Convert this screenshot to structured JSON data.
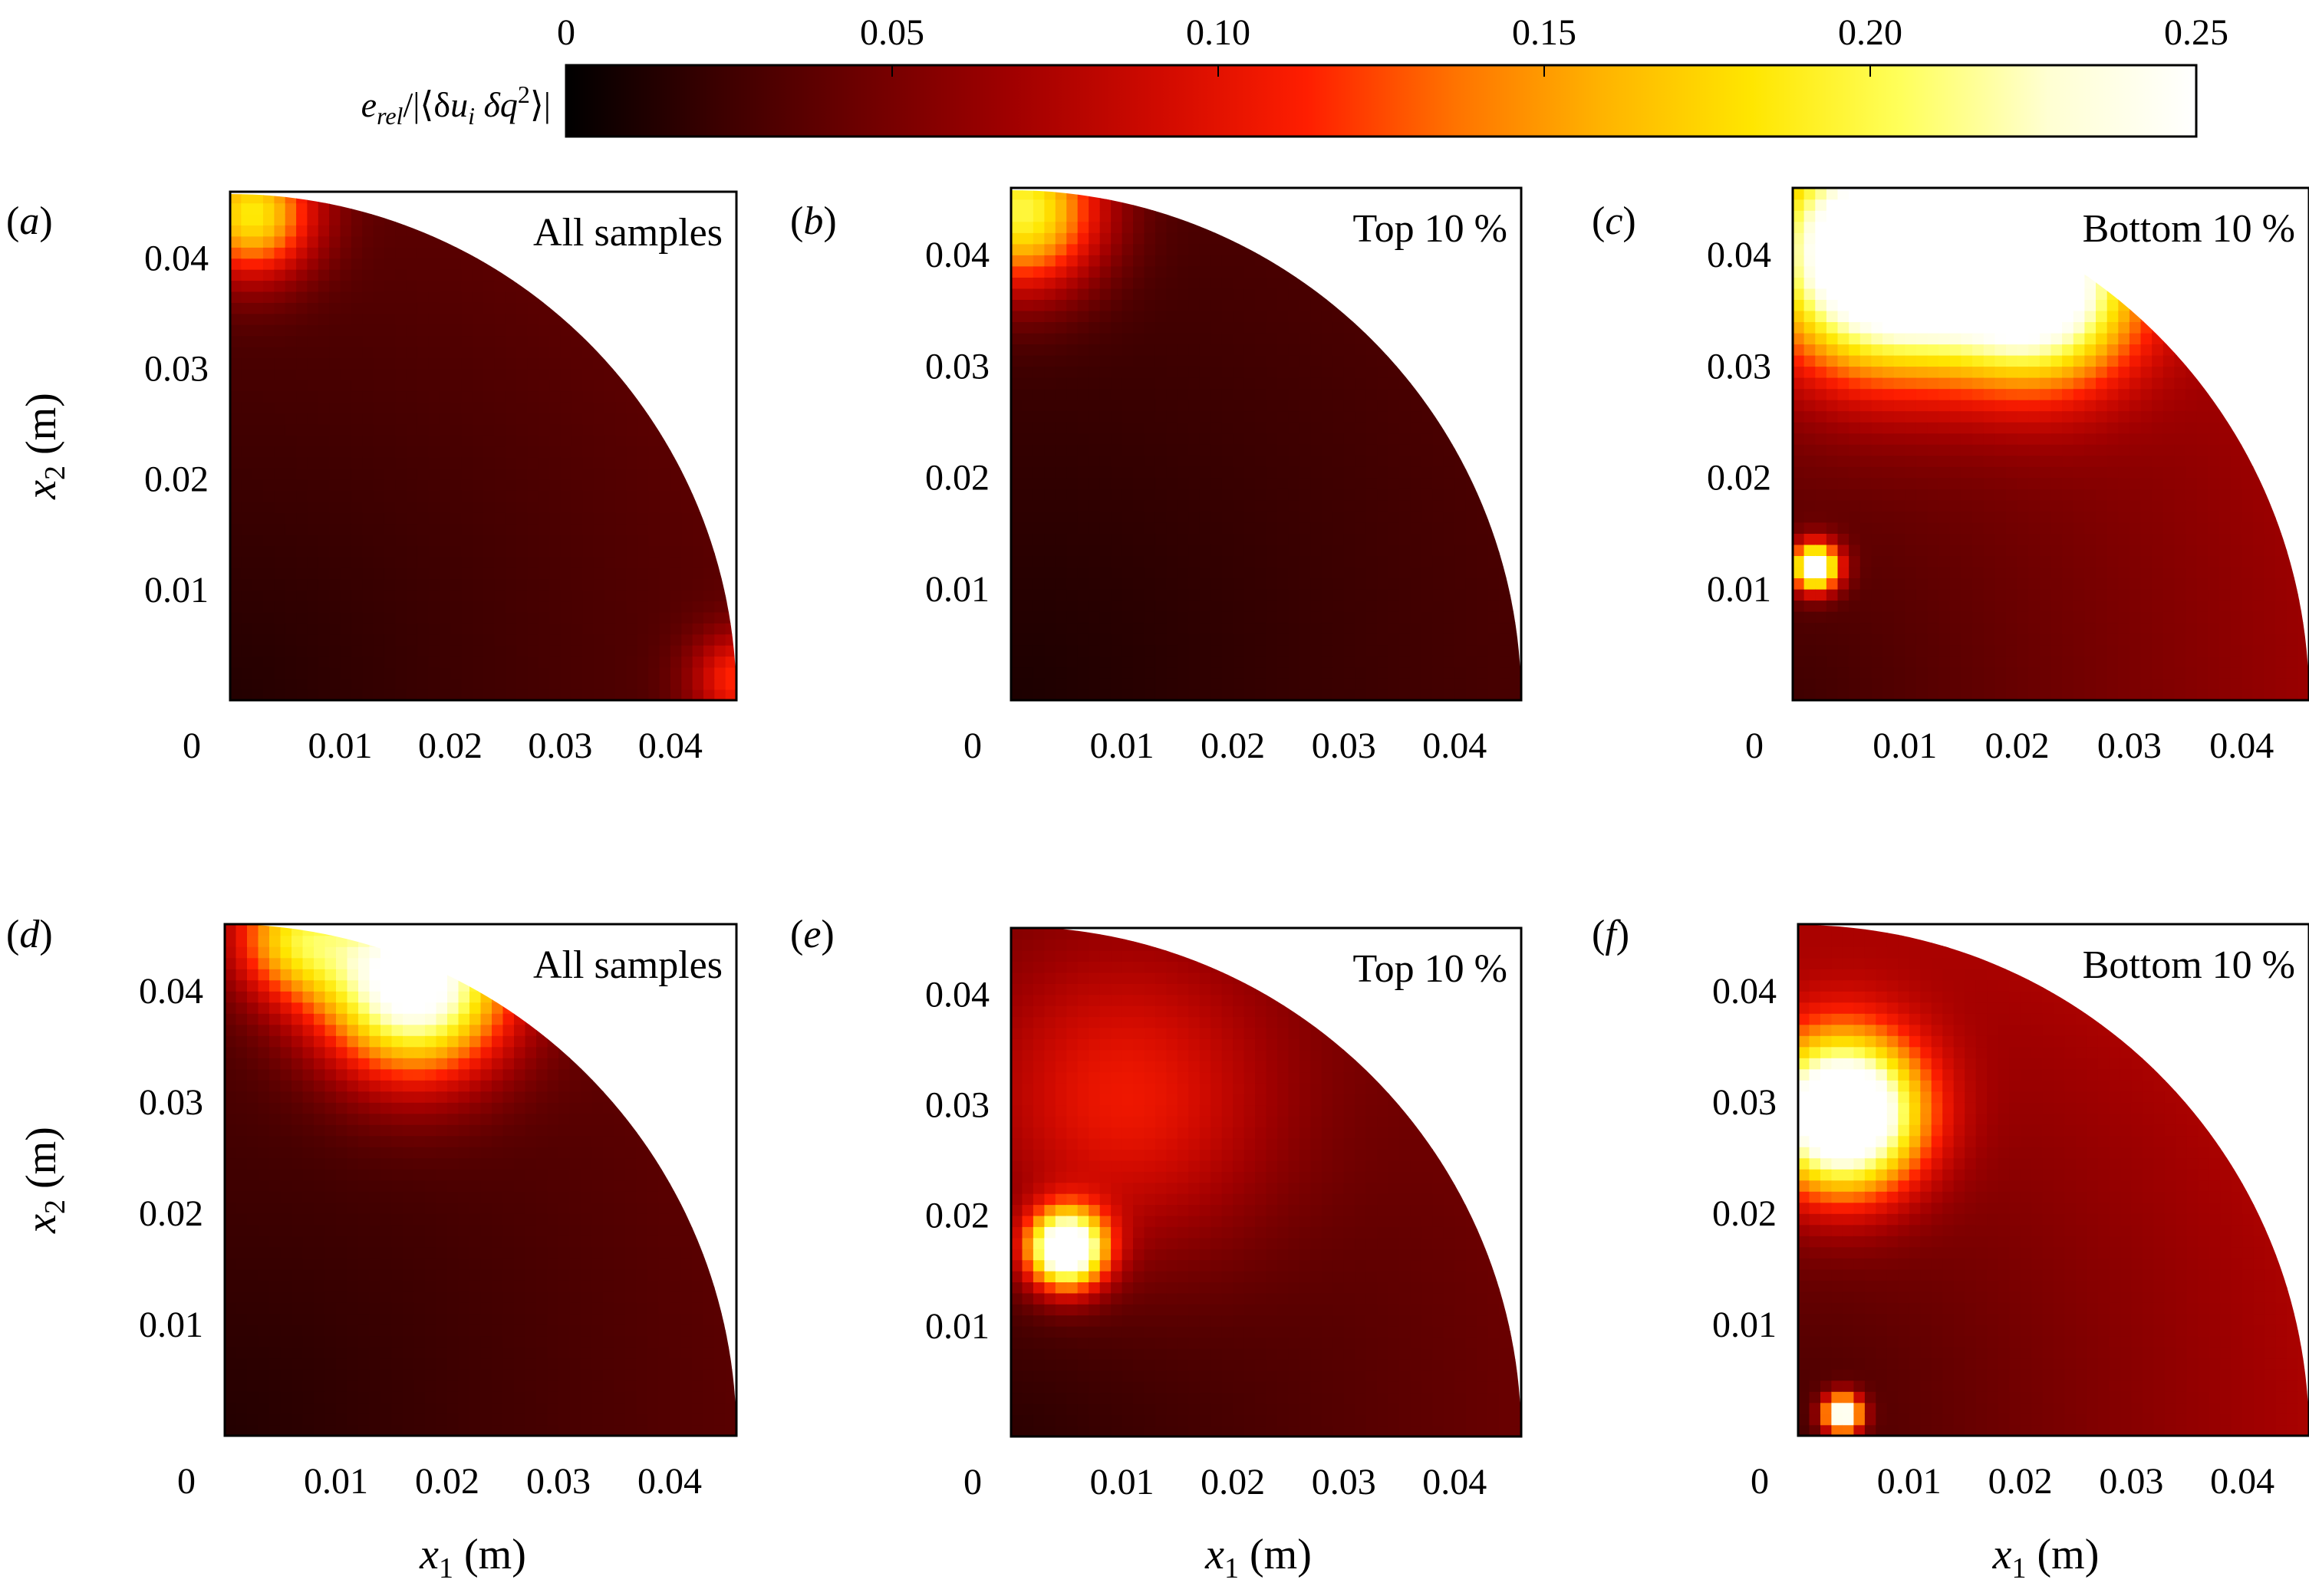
{
  "colorbar": {
    "label": "e_rel / |⟨δu_i δq^2⟩|",
    "label_parts": {
      "main": "e",
      "sub": "rel",
      "slash": "/|⟨δ",
      "u": "u",
      "i": "i",
      "dq": " δq",
      "sup": "2",
      "close": "⟩|"
    },
    "ticks": [
      "0",
      "0.05",
      "0.10",
      "0.15",
      "0.20",
      "0.25"
    ],
    "range": [
      0,
      0.25
    ],
    "colors": [
      "#000000",
      "#3a0000",
      "#6e0000",
      "#a00000",
      "#d00a00",
      "#ff1e00",
      "#ff7300",
      "#ffb400",
      "#ffe600",
      "#ffff5a",
      "#ffffd2",
      "#ffffff"
    ]
  },
  "chart_data": [
    {
      "panel": "(a)",
      "label_letter": "a",
      "annotation": "All samples",
      "type": "heatmap",
      "xlabel": "",
      "ylabel": "x2 (m)",
      "xlim": [
        0,
        0.046
      ],
      "ylim": [
        0,
        0.046
      ],
      "xticks": [
        "0",
        "0.01",
        "0.02",
        "0.03",
        "0.04"
      ],
      "yticks": [
        "0.01",
        "0.02",
        "0.03",
        "0.04"
      ],
      "hotspots": [
        {
          "x": 0.002,
          "y": 0.044,
          "value": 0.15,
          "spread": 0.004
        },
        {
          "x": 0.046,
          "y": 0.002,
          "value": 0.08,
          "spread": 0.003
        }
      ],
      "base_value": 0.025
    },
    {
      "panel": "(b)",
      "label_letter": "b",
      "annotation": "Top 10 %",
      "type": "heatmap",
      "xlabel": "",
      "ylabel": "",
      "xlim": [
        0,
        0.046
      ],
      "ylim": [
        0,
        0.046
      ],
      "xticks": [
        "0",
        "0.01",
        "0.02",
        "0.03",
        "0.04"
      ],
      "yticks": [
        "0.01",
        "0.02",
        "0.03",
        "0.04"
      ],
      "hotspots": [
        {
          "x": 0.001,
          "y": 0.044,
          "value": 0.17,
          "spread": 0.005
        }
      ],
      "base_value": 0.02
    },
    {
      "panel": "(c)",
      "label_letter": "c",
      "annotation": "Bottom 10 %",
      "type": "heatmap",
      "xlabel": "",
      "ylabel": "",
      "xlim": [
        0,
        0.046
      ],
      "ylim": [
        0,
        0.046
      ],
      "xticks": [
        "0",
        "0.01",
        "0.02",
        "0.03",
        "0.04"
      ],
      "yticks": [
        "0.01",
        "0.02",
        "0.03",
        "0.04"
      ],
      "hotspots": [
        {
          "x": 0.008,
          "y": 0.04,
          "value": 0.28,
          "spread": 0.007
        },
        {
          "x": 0.022,
          "y": 0.037,
          "value": 0.22,
          "spread": 0.006
        },
        {
          "x": 0.002,
          "y": 0.012,
          "value": 0.25,
          "spread": 0.0015
        }
      ],
      "base_value": 0.045
    },
    {
      "panel": "(d)",
      "label_letter": "d",
      "annotation": "All samples",
      "type": "heatmap",
      "xlabel": "x1 (m)",
      "ylabel": "x2 (m)",
      "xlim": [
        0,
        0.046
      ],
      "ylim": [
        0,
        0.046
      ],
      "xticks": [
        "0",
        "0.01",
        "0.02",
        "0.03",
        "0.04"
      ],
      "yticks": [
        "0.01",
        "0.02",
        "0.03",
        "0.04"
      ],
      "hotspots": [
        {
          "x": 0.017,
          "y": 0.041,
          "value": 0.24,
          "spread": 0.006
        },
        {
          "x": 0.006,
          "y": 0.045,
          "value": 0.12,
          "spread": 0.004
        }
      ],
      "base_value": 0.025
    },
    {
      "panel": "(e)",
      "label_letter": "e",
      "annotation": "Top 10 %",
      "type": "heatmap",
      "xlabel": "x1 (m)",
      "ylabel": "",
      "xlim": [
        0,
        0.046
      ],
      "ylim": [
        0,
        0.046
      ],
      "xticks": [
        "0",
        "0.01",
        "0.02",
        "0.03",
        "0.04"
      ],
      "yticks": [
        "0.01",
        "0.02",
        "0.03",
        "0.04"
      ],
      "hotspots": [
        {
          "x": 0.005,
          "y": 0.017,
          "value": 0.26,
          "spread": 0.0025
        },
        {
          "x": 0.01,
          "y": 0.03,
          "value": 0.07,
          "spread": 0.01
        }
      ],
      "base_value": 0.03
    },
    {
      "panel": "(f)",
      "label_letter": "f",
      "annotation": "Bottom 10 %",
      "type": "heatmap",
      "xlabel": "x1 (m)",
      "ylabel": "",
      "xlim": [
        0,
        0.046
      ],
      "ylim": [
        0,
        0.046
      ],
      "xticks": [
        "0",
        "0.01",
        "0.02",
        "0.03",
        "0.04"
      ],
      "yticks": [
        "0.01",
        "0.02",
        "0.03",
        "0.04"
      ],
      "hotspots": [
        {
          "x": 0.004,
          "y": 0.029,
          "value": 0.27,
          "spread": 0.005
        },
        {
          "x": 0.004,
          "y": 0.002,
          "value": 0.25,
          "spread": 0.0012
        }
      ],
      "base_value": 0.05
    }
  ]
}
